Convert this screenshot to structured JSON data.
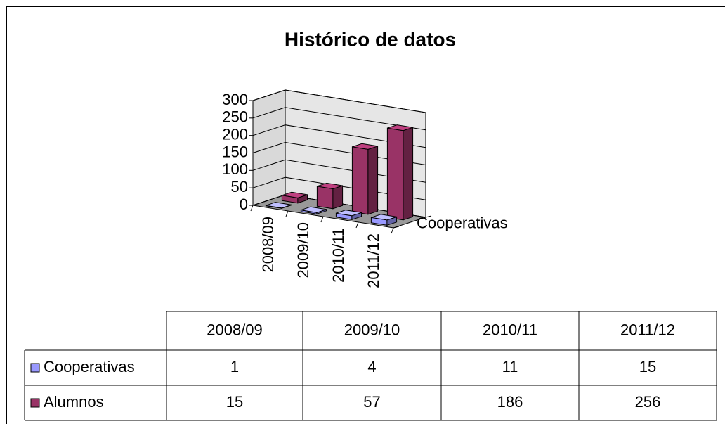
{
  "chart_data": {
    "type": "bar3d",
    "title": "Histórico de datos",
    "categories": [
      "2008/09",
      "2009/10",
      "2010/11",
      "2011/12"
    ],
    "series": [
      {
        "name": "Cooperativas",
        "color": "#9999ff",
        "values": [
          1,
          4,
          11,
          15
        ]
      },
      {
        "name": "Alumnos",
        "color": "#993366",
        "values": [
          15,
          57,
          186,
          256
        ]
      }
    ],
    "ylim": [
      0,
      300
    ],
    "yticks": [
      0,
      50,
      100,
      150,
      200,
      250,
      300
    ],
    "grid": true,
    "data_table": true
  }
}
